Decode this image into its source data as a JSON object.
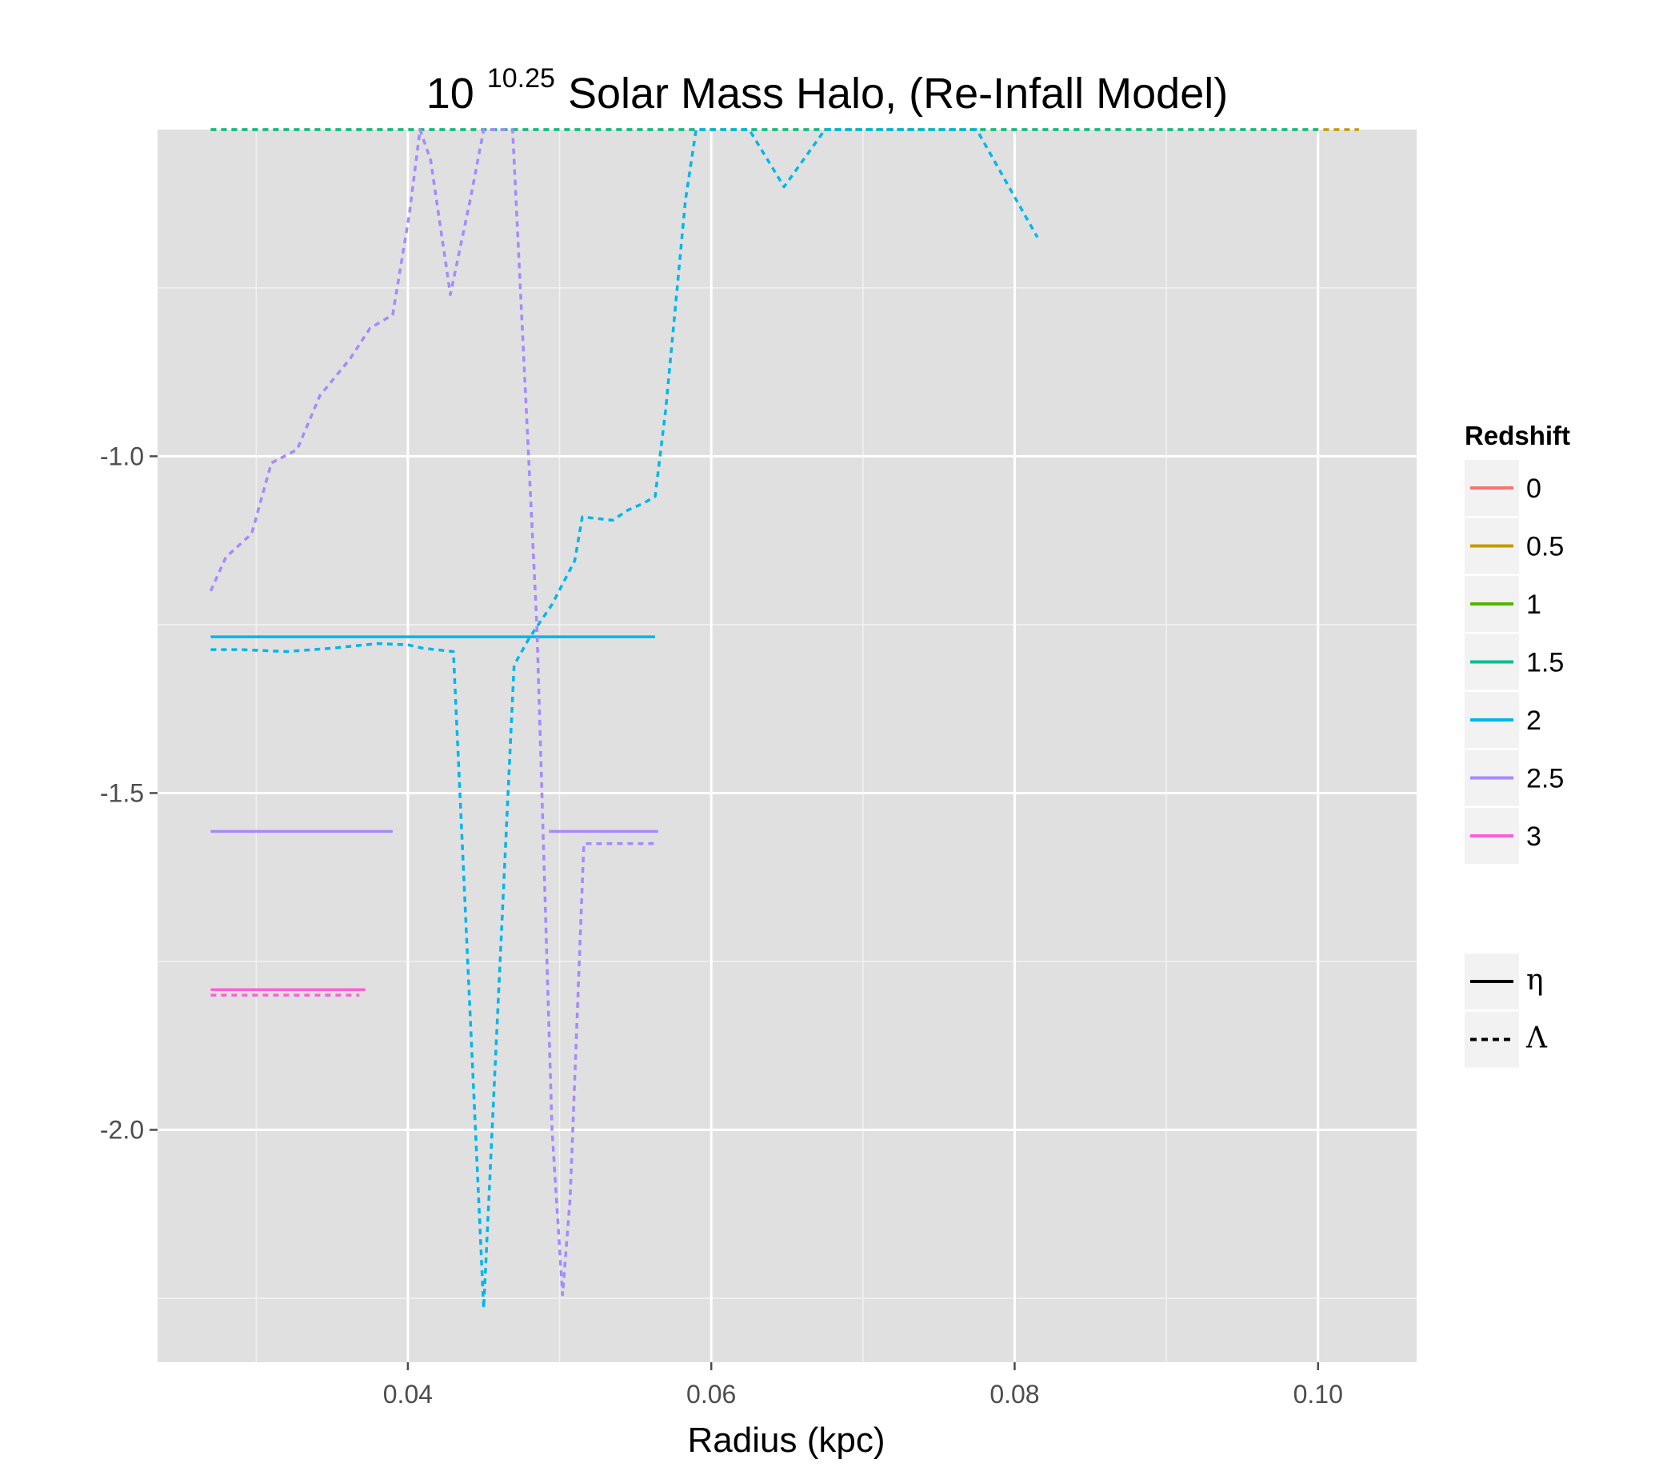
{
  "chart_data": {
    "type": "line",
    "title": {
      "base": "10",
      "exponent": "10.25",
      "rest": "Solar Mass Halo, (Re-Infall Model)"
    },
    "xlabel": "Radius (kpc)",
    "ylabel": "",
    "xlim": [
      0.0235,
      0.1065
    ],
    "ylim": [
      -2.345,
      -0.515
    ],
    "x_ticks": [
      {
        "value": 0.04,
        "label": "0.04"
      },
      {
        "value": 0.06,
        "label": "0.06"
      },
      {
        "value": 0.08,
        "label": "0.08"
      },
      {
        "value": 0.1,
        "label": "0.10"
      }
    ],
    "y_ticks": [
      {
        "value": -1.0,
        "label": "-1.0"
      },
      {
        "value": -1.5,
        "label": "-1.5"
      },
      {
        "value": -2.0,
        "label": "-2.0"
      }
    ],
    "x_minor": [
      0.03,
      0.05,
      0.07,
      0.09
    ],
    "y_minor": [
      -0.75,
      -1.25,
      -1.75,
      -2.25
    ],
    "grid": true,
    "background": "#e0e0e0",
    "legend": {
      "position": "right",
      "color_title": "Redshift",
      "color_entries": [
        {
          "label": "0",
          "color": "#f8766d"
        },
        {
          "label": "0.5",
          "color": "#c49a00"
        },
        {
          "label": "1",
          "color": "#53b400"
        },
        {
          "label": "1.5",
          "color": "#00c094"
        },
        {
          "label": "2",
          "color": "#00b6eb"
        },
        {
          "label": "2.5",
          "color": "#a58aff"
        },
        {
          "label": "3",
          "color": "#fb61d7"
        }
      ],
      "linetype_entries": [
        {
          "label": "η",
          "dash": "solid"
        },
        {
          "label": "Λ",
          "dash": "dashed"
        }
      ]
    },
    "series": [
      {
        "redshift": "0.5",
        "linetype": "dashed",
        "color": "#c49a00",
        "points": [
          [
            0.027,
            -0.515
          ],
          [
            0.1027,
            -0.515
          ]
        ]
      },
      {
        "redshift": "1.5",
        "linetype": "dashed",
        "color": "#00c094",
        "points": [
          [
            0.027,
            -0.515
          ],
          [
            0.1,
            -0.515
          ]
        ]
      },
      {
        "redshift": "2",
        "linetype": "solid",
        "color": "#00b6eb",
        "points": [
          [
            0.027,
            -1.268
          ],
          [
            0.0563,
            -1.268
          ]
        ]
      },
      {
        "redshift": "2",
        "linetype": "dashed",
        "color": "#00b6eb",
        "points": [
          [
            0.027,
            -1.287
          ],
          [
            0.029,
            -1.287
          ],
          [
            0.032,
            -1.29
          ],
          [
            0.035,
            -1.285
          ],
          [
            0.038,
            -1.278
          ],
          [
            0.04,
            -1.28
          ],
          [
            0.041,
            -1.285
          ],
          [
            0.043,
            -1.29
          ],
          [
            0.045,
            -2.265
          ],
          [
            0.047,
            -1.31
          ],
          [
            0.048,
            -1.27
          ],
          [
            0.0495,
            -1.22
          ],
          [
            0.051,
            -1.155
          ],
          [
            0.0515,
            -1.09
          ],
          [
            0.0535,
            -1.095
          ],
          [
            0.0545,
            -1.08
          ],
          [
            0.0555,
            -1.07
          ],
          [
            0.0563,
            -1.06
          ],
          [
            0.057,
            -0.93
          ],
          [
            0.0583,
            -0.62
          ],
          [
            0.059,
            -0.515
          ],
          [
            0.0605,
            -0.515
          ],
          [
            0.0625,
            -0.515
          ],
          [
            0.0648,
            -0.6
          ],
          [
            0.0675,
            -0.515
          ],
          [
            0.0705,
            -0.515
          ],
          [
            0.0775,
            -0.515
          ],
          [
            0.0815,
            -0.675
          ]
        ]
      },
      {
        "redshift": "2.5",
        "linetype": "solid",
        "color": "#a58aff",
        "points": [
          [
            0.027,
            -1.557
          ],
          [
            0.039,
            -1.557
          ]
        ]
      },
      {
        "redshift": "2.5",
        "linetype": "solid",
        "color": "#a58aff",
        "points": [
          [
            0.0493,
            -1.557
          ],
          [
            0.0565,
            -1.557
          ]
        ]
      },
      {
        "redshift": "2.5",
        "linetype": "dashed",
        "color": "#a58aff",
        "points": [
          [
            0.027,
            -1.2
          ],
          [
            0.028,
            -1.15
          ],
          [
            0.0297,
            -1.115
          ],
          [
            0.031,
            -1.01
          ],
          [
            0.0327,
            -0.99
          ],
          [
            0.0342,
            -0.91
          ],
          [
            0.0362,
            -0.855
          ],
          [
            0.0375,
            -0.81
          ],
          [
            0.039,
            -0.79
          ],
          [
            0.0401,
            -0.64
          ],
          [
            0.0408,
            -0.515
          ],
          [
            0.0415,
            -0.56
          ],
          [
            0.0428,
            -0.76
          ],
          [
            0.0441,
            -0.62
          ],
          [
            0.045,
            -0.515
          ],
          [
            0.0469,
            -0.515
          ],
          [
            0.0485,
            -1.25
          ],
          [
            0.0495,
            -2.0
          ],
          [
            0.0502,
            -2.245
          ],
          [
            0.0507,
            -2.1
          ],
          [
            0.0516,
            -1.575
          ],
          [
            0.0565,
            -1.575
          ]
        ]
      },
      {
        "redshift": "3",
        "linetype": "solid",
        "color": "#fb61d7",
        "points": [
          [
            0.027,
            -1.792
          ],
          [
            0.0372,
            -1.792
          ]
        ]
      },
      {
        "redshift": "3",
        "linetype": "dashed",
        "color": "#fb61d7",
        "points": [
          [
            0.027,
            -1.8
          ],
          [
            0.0368,
            -1.8
          ]
        ]
      }
    ]
  }
}
